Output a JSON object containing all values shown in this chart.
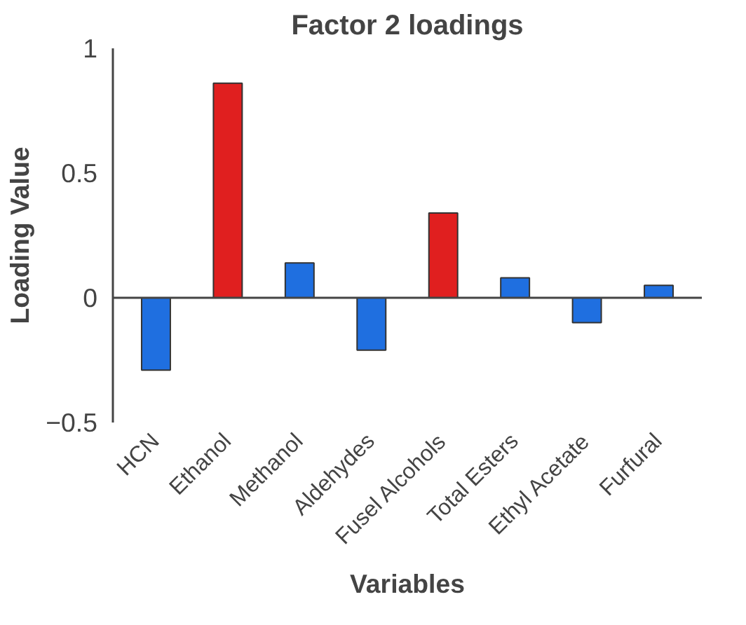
{
  "chart_data": {
    "type": "bar",
    "title": "Factor 2 loadings",
    "xlabel": "Variables",
    "ylabel": "Loading Value",
    "categories": [
      "HCN",
      "Ethanol",
      "Methanol",
      "Aldehydes",
      "Fusel Alcohols",
      "Total Esters",
      "Ethyl Acetate",
      "Furfural"
    ],
    "values": [
      -0.29,
      0.86,
      0.14,
      -0.21,
      0.34,
      0.08,
      -0.1,
      0.05
    ],
    "colors": [
      "#1f6fe0",
      "#e01f1f",
      "#1f6fe0",
      "#1f6fe0",
      "#e01f1f",
      "#1f6fe0",
      "#1f6fe0",
      "#1f6fe0"
    ],
    "ylim": [
      -0.5,
      1
    ],
    "yticks": [
      -0.5,
      0,
      0.5,
      1
    ]
  }
}
